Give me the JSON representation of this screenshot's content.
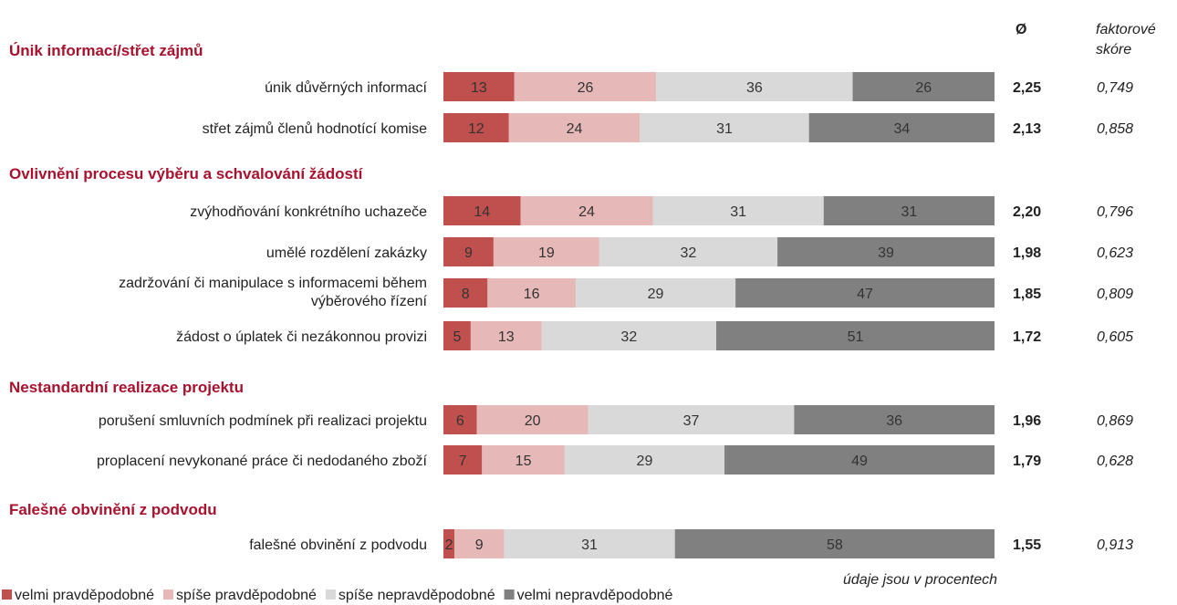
{
  "chart_data": {
    "type": "bar",
    "orientation": "horizontal",
    "stacked": "percent",
    "header_avg": "Ø",
    "header_factor": [
      "faktorové",
      "skóre"
    ],
    "note": "údaje jsou v procentech",
    "legend_position": "bottom-left",
    "series": [
      {
        "name": "velmi pravděpodobné",
        "color": "#c0504d"
      },
      {
        "name": "spíše pravděpodobné",
        "color": "#e6b8b7"
      },
      {
        "name": "spíše nepravděpodobné",
        "color": "#d9d9d9"
      },
      {
        "name": "velmi nepravděpodobné",
        "color": "#808080"
      }
    ],
    "groups": [
      {
        "title": "Únik informací/střet zájmů",
        "items": [
          {
            "label": [
              "únik důvěrných informací"
            ],
            "values": [
              13,
              26,
              36,
              26
            ],
            "avg": "2,25",
            "factor": "0,749"
          },
          {
            "label": [
              "střet zájmů členů hodnotící komise"
            ],
            "values": [
              12,
              24,
              31,
              34
            ],
            "avg": "2,13",
            "factor": "0,858"
          }
        ]
      },
      {
        "title": "Ovlivnění procesu výběru a schvalování žádostí",
        "items": [
          {
            "label": [
              "zvýhodňování konkrétního uchazeče"
            ],
            "values": [
              14,
              24,
              31,
              31
            ],
            "avg": "2,20",
            "factor": "0,796"
          },
          {
            "label": [
              "umělé rozdělení zakázky"
            ],
            "values": [
              9,
              19,
              32,
              39
            ],
            "avg": "1,98",
            "factor": "0,623"
          },
          {
            "label": [
              "zadržování či manipulace s informacemi během",
              "výběrového řízení"
            ],
            "values": [
              8,
              16,
              29,
              47
            ],
            "avg": "1,85",
            "factor": "0,809"
          },
          {
            "label": [
              "žádost o úplatek či nezákonnou provizi"
            ],
            "values": [
              5,
              13,
              32,
              51
            ],
            "avg": "1,72",
            "factor": "0,605"
          }
        ]
      },
      {
        "title": "Nestandardní realizace projektu",
        "items": [
          {
            "label": [
              "porušení smluvních podmínek při realizaci projektu"
            ],
            "values": [
              6,
              20,
              37,
              36
            ],
            "avg": "1,96",
            "factor": "0,869"
          },
          {
            "label": [
              "proplacení nevykonané práce či nedodaného zboží"
            ],
            "values": [
              7,
              15,
              29,
              49
            ],
            "avg": "1,79",
            "factor": "0,628"
          }
        ]
      },
      {
        "title": "Falešné obvinění z podvodu",
        "items": [
          {
            "label": [
              "falešné obvinění z podvodu"
            ],
            "values": [
              2,
              9,
              31,
              58
            ],
            "avg": "1,55",
            "factor": "0,913"
          }
        ]
      }
    ]
  }
}
